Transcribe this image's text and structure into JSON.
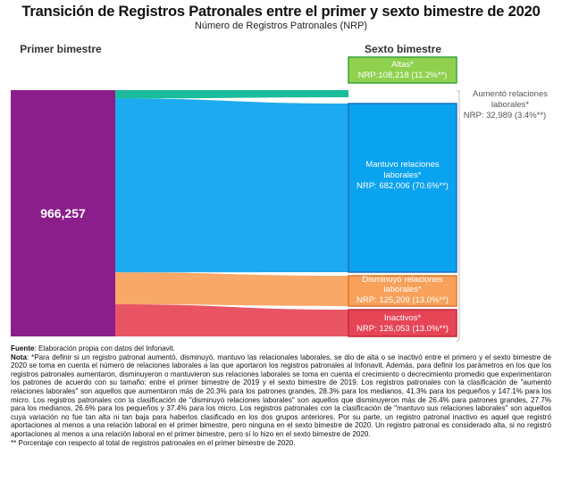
{
  "chart_data": {
    "type": "sankey",
    "title": "Transición de Registros Patronales entre el primer y sexto bimestre de 2020",
    "subtitle": "Número de Registros Patronales (NRP)",
    "left_header": "Primer bimestre",
    "right_header": "Sexto bimestre",
    "source": {
      "label": "966,257",
      "value": 966257,
      "color": "#8b1e8a"
    },
    "nodes": [
      {
        "key": "altas",
        "label": "Altas*",
        "nrp": "NRP:108,218 (11.2%**)",
        "value": 108218,
        "color": "#8fd14f",
        "border": "#3aa23a",
        "text_color": "#ffffff",
        "outflow": false
      },
      {
        "key": "aumento",
        "label": "Aumentó relaciones laborales*",
        "nrp": "NRP: 32,989 (3.4%**)",
        "value": 32989,
        "color": "#1abc9c",
        "text_color": "#555555",
        "outflow": true
      },
      {
        "key": "mantuvo",
        "label": "Mantuvo relaciones laborales*",
        "nrp": "NRP: 682,006 (70.6%**)",
        "value": 682006,
        "color": "#0aa3ef",
        "border": "#1f6fc0",
        "text_color": "#ffffff",
        "outflow": true
      },
      {
        "key": "disminuyo",
        "label": "Disminuyó relaciones laborales*",
        "nrp": "NRP: 125,209 (13.0%**)",
        "value": 125209,
        "color": "#f7a15a",
        "border": "#e0762a",
        "text_color": "#ffffff",
        "outflow": true
      },
      {
        "key": "inactivos",
        "label": "Inactivos*",
        "nrp": "NRP: 126,053 (13.0%**)",
        "value": 126053,
        "color": "#e64556",
        "border": "#c0283a",
        "text_color": "#ffffff",
        "outflow": true
      }
    ]
  },
  "footer": {
    "fuente_label": "Fuente",
    "fuente_text": ": Elaboración propia con datos del Infonavit.",
    "nota_label": "Nota",
    "nota_text": ": *Para definir si un registro patronal aumentó, disminuyó, mantuvo las relacionales laborales, se dio de alta o se inactivó entre el primero y el sexto bimestre de 2020 se toma en cuenta el número de relaciones laborales a las que aportaron los registros patronales al Infonavit. Además, para definir los parámetros en los que los registros patronales aumentaron, disminuyeron o mantuvieron sus relaciones laborales se toma en cuenta el crecimiento o decrecimiento promedio que experimentaron los patrones de acuerdo con su tamaño: entre el primer bimestre de 2019 y el sexto bimestre de 2019. Los registros patronales con la clasificación de \"aumentó relaciones laborales\" son aquellos que aumentaron más de 20.3% para los patrones grandes, 28.3% para los medianos, 41.3% para los pequeños y 147.1% para los micro. Los registros patronales con la clasificación de \"disminuyó relaciones laborales\" son aquellos que disminuyeron más de 26.4% para patrones grandes, 27.7% para los medianos, 26.6% para los pequeños y 37.4% para los micro. Los registros patronales con la clasificación de \"mantuvo sus relaciones laborales\" son aquellos cuya variación no fue tan alta ni tan baja para haberlos clasificado en los dos grupos anteriores. Por su parte, un registro patronal inactivo es aquel que registró aportaciones al menos a una relación laboral en el primer bimestre, pero ninguna en el sexto bimestre de 2020. Un registro patronal es considerado alta, si no registró aportaciones al menos a una relación laboral en el primer bimestre, pero sí lo hizo en el sexto bimestre de 2020.",
    "pct_note": "** Porcentaje con respecto al total de registros patronales en el primer bimestre de 2020."
  }
}
